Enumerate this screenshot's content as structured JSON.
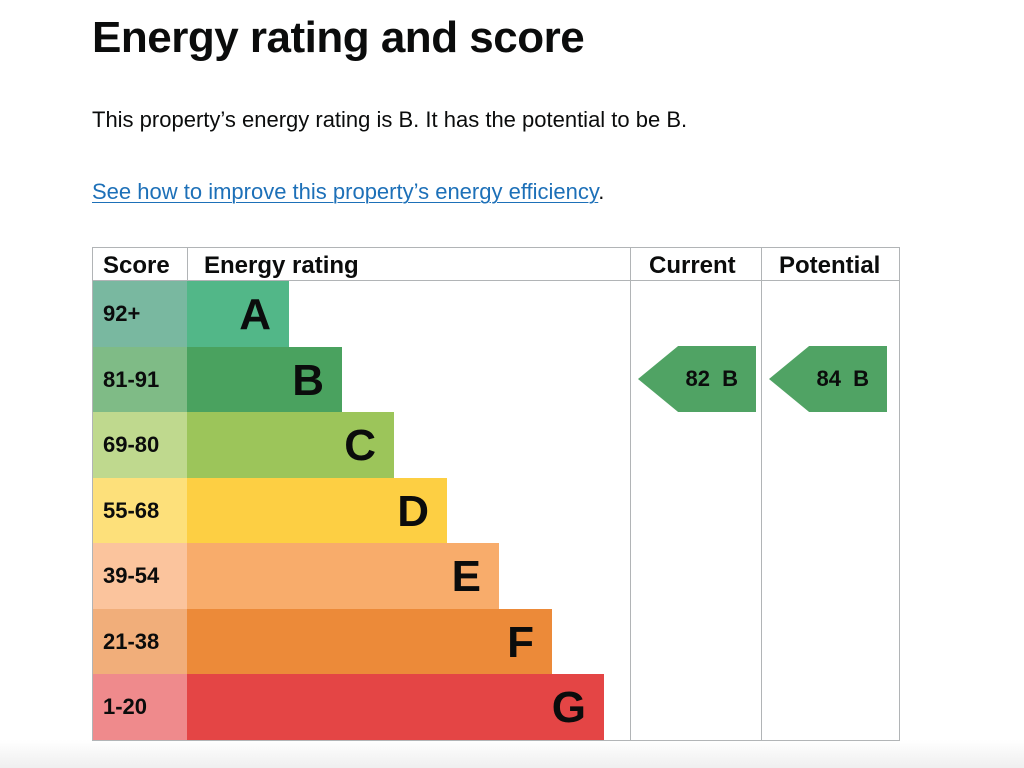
{
  "heading": "Energy rating and score",
  "summary": "This property’s energy rating is B. It has the potential to be B.",
  "improve_link": "See how to improve this property’s energy efficiency",
  "improve_suffix": ".",
  "chart": {
    "headers": {
      "score": "Score",
      "rating": "Energy rating",
      "current": "Current",
      "potential": "Potential"
    },
    "bands": [
      {
        "score": "92+",
        "letter": "A",
        "score_color": "#79b8a0",
        "bar_color": "#52b788"
      },
      {
        "score": "81-91",
        "letter": "B",
        "score_color": "#7fbb86",
        "bar_color": "#4aa25f"
      },
      {
        "score": "69-80",
        "letter": "C",
        "score_color": "#bfd98e",
        "bar_color": "#9cc55a"
      },
      {
        "score": "55-68",
        "letter": "D",
        "score_color": "#fde07a",
        "bar_color": "#fdcf43"
      },
      {
        "score": "39-54",
        "letter": "E",
        "score_color": "#fbc49d",
        "bar_color": "#f8ac6b"
      },
      {
        "score": "21-38",
        "letter": "F",
        "score_color": "#f1ae7a",
        "bar_color": "#ec8a39"
      },
      {
        "score": "1-20",
        "letter": "G",
        "score_color": "#ef8a8c",
        "bar_color": "#e44545"
      }
    ],
    "current": {
      "label": "82 B",
      "color": "#50a364"
    },
    "potential": {
      "label": "84 B",
      "color": "#50a364"
    }
  }
}
